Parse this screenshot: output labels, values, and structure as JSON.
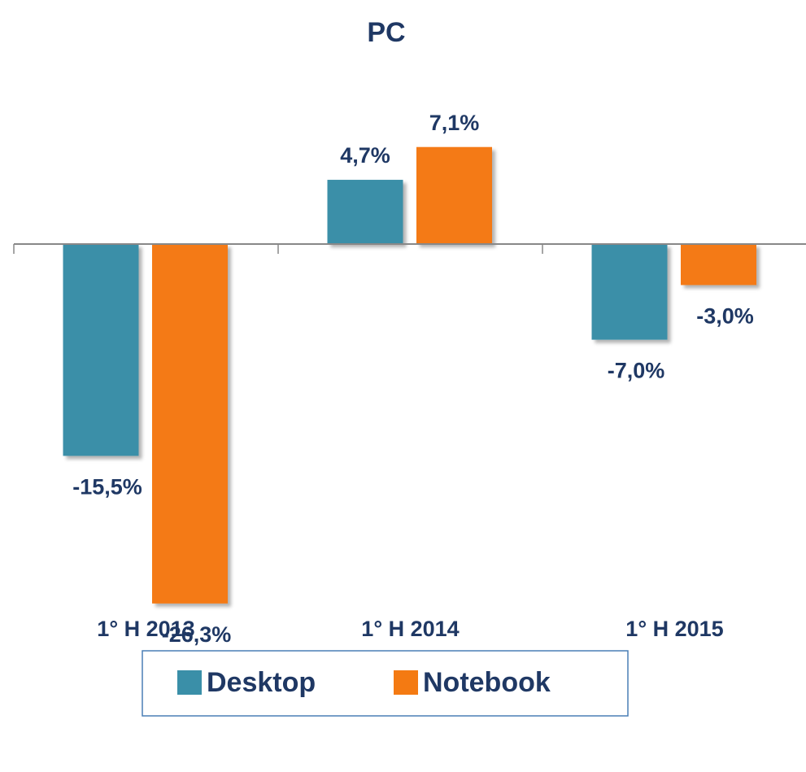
{
  "chart_data": {
    "type": "bar",
    "title": "PC",
    "categories": [
      "1° H 2013",
      "1° H 2014",
      "1° H 2015"
    ],
    "series": [
      {
        "name": "Desktop",
        "color": "#3a8fa8",
        "values": [
          -15.5,
          4.7,
          -7.0
        ],
        "value_labels": [
          "-15,5%",
          "4,7%",
          "-7,0%"
        ]
      },
      {
        "name": "Notebook",
        "color": "#f47a12",
        "values": [
          -26.3,
          7.1,
          -3.0
        ],
        "value_labels": [
          "-26,3%",
          "7,1%",
          "-3,0%"
        ]
      }
    ],
    "ylim": [
      -28,
      8
    ],
    "legend": "bottom"
  }
}
